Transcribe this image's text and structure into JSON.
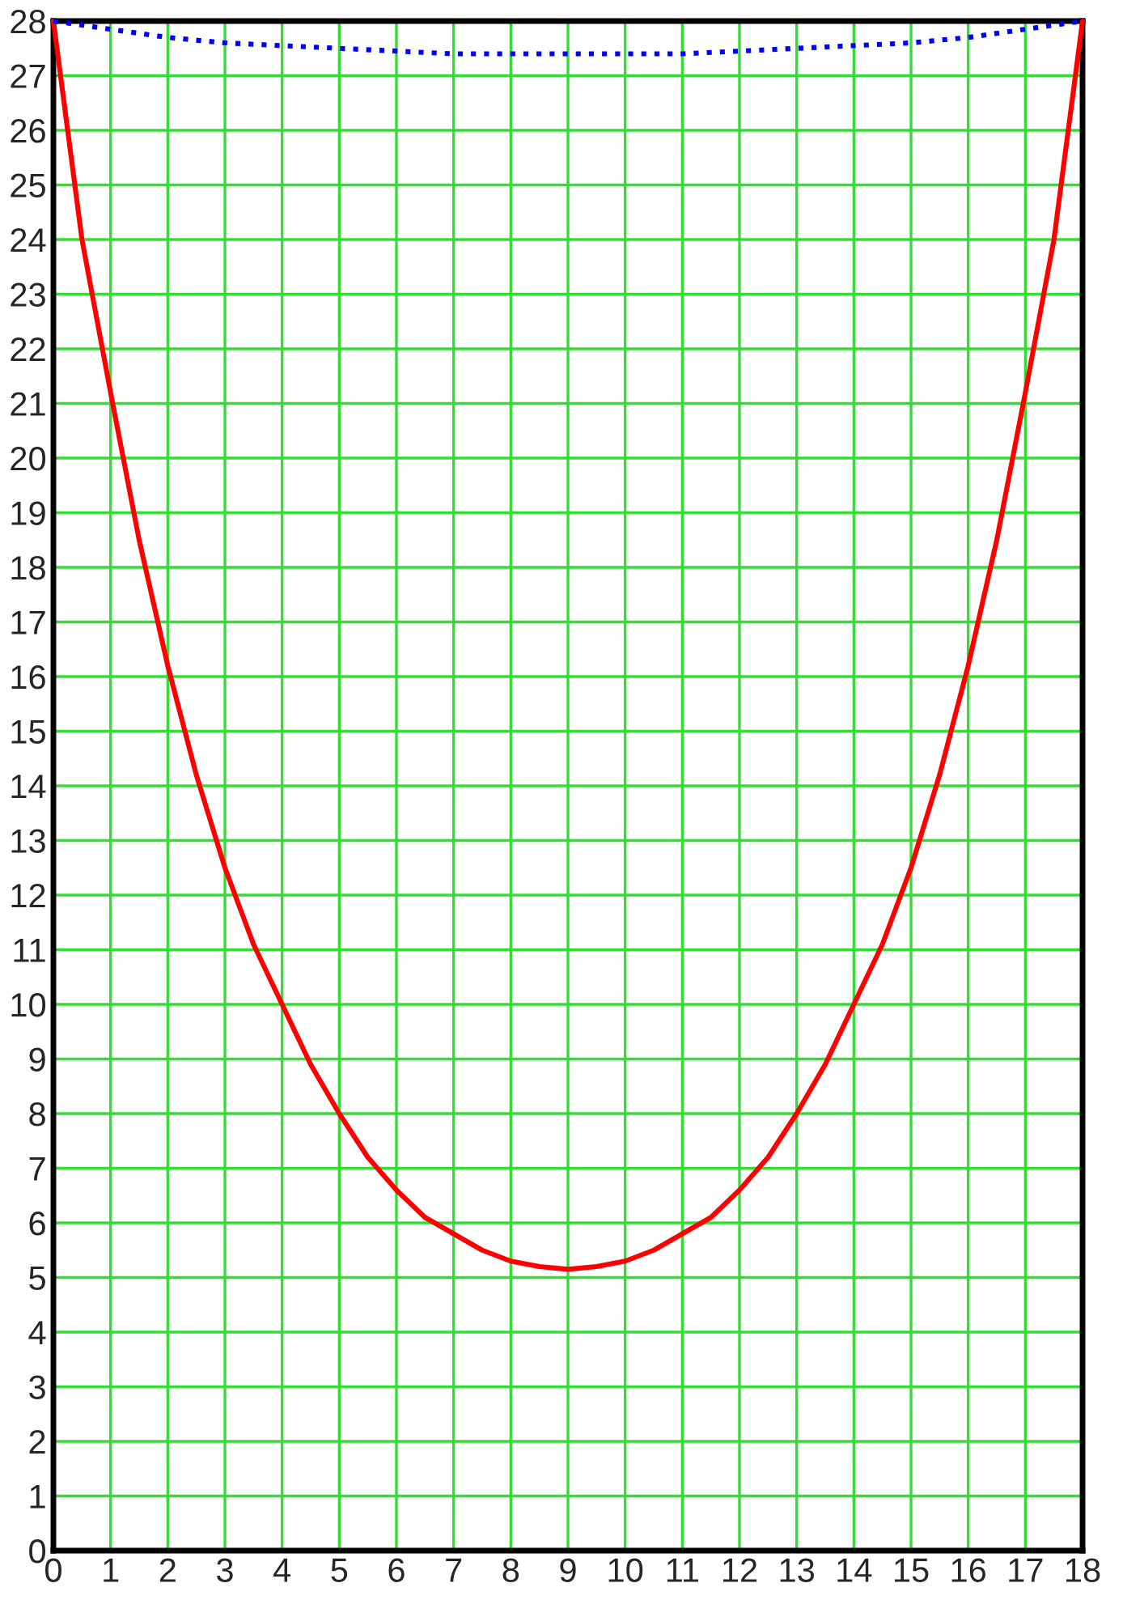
{
  "chart_data": {
    "type": "line",
    "xlim": [
      0,
      18
    ],
    "ylim": [
      0,
      28
    ],
    "xticks": [
      0,
      1,
      2,
      3,
      4,
      5,
      6,
      7,
      8,
      9,
      10,
      11,
      12,
      13,
      14,
      15,
      16,
      17,
      18
    ],
    "yticks": [
      0,
      1,
      2,
      3,
      4,
      5,
      6,
      7,
      8,
      9,
      10,
      11,
      12,
      13,
      14,
      15,
      16,
      17,
      18,
      19,
      20,
      21,
      22,
      23,
      24,
      25,
      26,
      27,
      28
    ],
    "grid": true,
    "legend": false,
    "series": [
      {
        "color": "#ff0000",
        "line_style": "solid",
        "x": [
          0,
          0.25,
          0.5,
          1,
          1.5,
          2,
          2.5,
          3,
          3.5,
          4,
          4.5,
          5,
          5.5,
          6,
          6.5,
          7,
          7.5,
          8,
          8.5,
          9,
          9.5,
          10,
          10.5,
          11,
          11.5,
          12,
          12.5,
          13,
          13.5,
          14,
          14.5,
          15,
          15.5,
          16,
          16.5,
          17,
          17.5,
          17.75,
          18
        ],
        "values": [
          28,
          26,
          24,
          21.2,
          18.5,
          16.2,
          14.2,
          12.5,
          11.1,
          10,
          8.9,
          8,
          7.2,
          6.6,
          6.1,
          5.8,
          5.5,
          5.3,
          5.2,
          5.15,
          5.2,
          5.3,
          5.5,
          5.8,
          6.1,
          6.6,
          7.2,
          8,
          8.9,
          10,
          11.1,
          12.5,
          14.2,
          16.2,
          18.5,
          21.2,
          24,
          26,
          28
        ]
      },
      {
        "color": "#0000ff",
        "line_style": "dotted",
        "x": [
          0,
          1,
          2,
          3,
          4,
          5,
          6,
          7,
          8,
          9,
          10,
          11,
          12,
          13,
          14,
          15,
          16,
          17,
          18
        ],
        "values": [
          28,
          27.85,
          27.7,
          27.6,
          27.55,
          27.5,
          27.45,
          27.4,
          27.4,
          27.4,
          27.4,
          27.4,
          27.45,
          27.5,
          27.55,
          27.6,
          27.7,
          27.85,
          28
        ]
      }
    ]
  }
}
